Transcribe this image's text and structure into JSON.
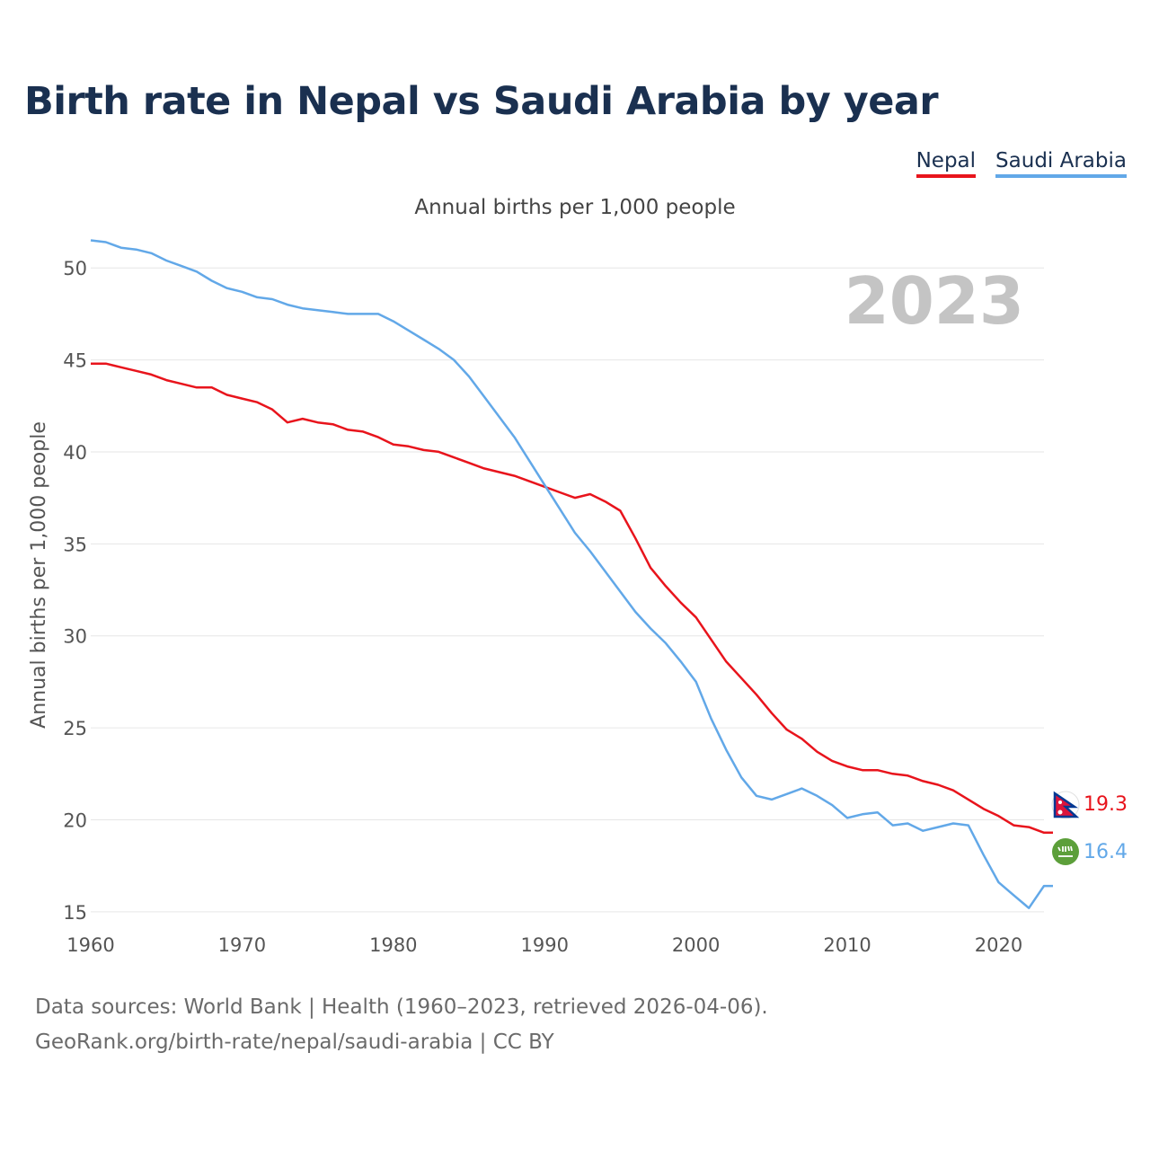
{
  "title": "Birth rate in Nepal vs Saudi Arabia by year",
  "subtitle": "Annual births per 1,000 people",
  "footer": {
    "line1": "Data sources: World Bank | Health (1960–2023, retrieved 2026-04-06).",
    "line2": "GeoRank.org/birth-rate/nepal/saudi-arabia | CC BY"
  },
  "chart_data": {
    "type": "line",
    "title": "Birth rate in Nepal vs Saudi Arabia by year",
    "subtitle": "Annual births per 1,000 people",
    "xlabel": "",
    "ylabel": "Annual births per 1,000 people",
    "year_label": "2023",
    "xlim": [
      1960,
      2023
    ],
    "ylim": [
      12.5,
      52.5
    ],
    "xticks": [
      1960,
      1970,
      1980,
      1990,
      2000,
      2010,
      2020
    ],
    "yticks": [
      15,
      20,
      25,
      30,
      35,
      40,
      45,
      50
    ],
    "grid": true,
    "legend": "top-right",
    "x": [
      1960,
      1961,
      1962,
      1963,
      1964,
      1965,
      1966,
      1967,
      1968,
      1969,
      1970,
      1971,
      1972,
      1973,
      1974,
      1975,
      1976,
      1977,
      1978,
      1979,
      1980,
      1981,
      1982,
      1983,
      1984,
      1985,
      1986,
      1987,
      1988,
      1989,
      1990,
      1991,
      1992,
      1993,
      1994,
      1995,
      1996,
      1997,
      1998,
      1999,
      2000,
      2001,
      2002,
      2003,
      2004,
      2005,
      2006,
      2007,
      2008,
      2009,
      2010,
      2011,
      2012,
      2013,
      2014,
      2015,
      2016,
      2017,
      2018,
      2019,
      2020,
      2021,
      2022,
      2023
    ],
    "series": [
      {
        "name": "Nepal",
        "color": "#e8141c",
        "end_label": "19.3",
        "values": [
          44.8,
          44.8,
          44.6,
          44.4,
          44.2,
          43.9,
          43.7,
          43.5,
          43.5,
          43.1,
          42.9,
          42.7,
          42.3,
          41.6,
          41.8,
          41.6,
          41.5,
          41.2,
          41.1,
          40.8,
          40.4,
          40.3,
          40.1,
          40.0,
          39.7,
          39.4,
          39.1,
          38.9,
          38.7,
          38.4,
          38.1,
          37.8,
          37.5,
          37.7,
          37.3,
          36.8,
          35.3,
          33.7,
          32.7,
          31.8,
          31.0,
          29.8,
          28.6,
          27.7,
          26.8,
          25.8,
          24.9,
          24.4,
          23.7,
          23.2,
          22.9,
          22.7,
          22.7,
          22.5,
          22.4,
          22.1,
          21.9,
          21.6,
          21.1,
          20.6,
          20.2,
          19.7,
          19.6,
          19.3
        ]
      },
      {
        "name": "Saudi Arabia",
        "color": "#62a8e8",
        "end_label": "16.4",
        "values": [
          51.5,
          51.4,
          51.1,
          51.0,
          50.8,
          50.4,
          50.1,
          49.8,
          49.3,
          48.9,
          48.7,
          48.4,
          48.3,
          48.0,
          47.8,
          47.7,
          47.6,
          47.5,
          47.5,
          47.5,
          47.1,
          46.6,
          46.1,
          45.6,
          45.0,
          44.1,
          43.0,
          41.9,
          40.8,
          39.5,
          38.2,
          36.9,
          35.6,
          34.6,
          33.5,
          32.4,
          31.3,
          30.4,
          29.6,
          28.6,
          27.5,
          25.5,
          23.8,
          22.3,
          21.3,
          21.1,
          21.4,
          21.7,
          21.3,
          20.8,
          20.1,
          20.3,
          20.4,
          19.7,
          19.8,
          19.4,
          19.6,
          19.8,
          19.7,
          18.1,
          16.6,
          15.9,
          15.2,
          16.4
        ]
      }
    ]
  },
  "colors": {
    "title": "#1a3050",
    "grid": "#e6e6e6",
    "year": "#c4c4c4"
  },
  "icons": {
    "nepal": "nepal-flag-icon",
    "saudi_arabia": "saudi-arabia-flag-icon"
  }
}
